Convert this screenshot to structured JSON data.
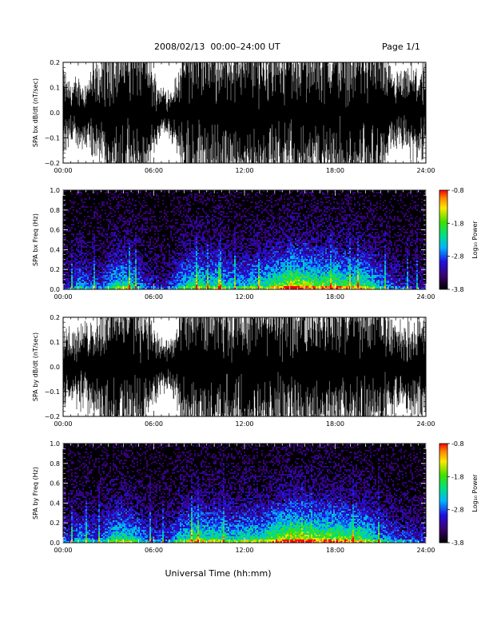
{
  "header": {
    "title": "2008/02/13  00:00–24:00 UT",
    "page": "Page 1/1"
  },
  "footer": {
    "xlabel": "Universal Time (hh:mm)"
  },
  "colorbar": {
    "label": "Log₁₀ Power",
    "ticks": [
      "-0.8",
      "-1.8",
      "-2.8",
      "-3.8"
    ]
  },
  "chart_data": [
    {
      "type": "line",
      "ylabel": "SPA bx dB/dt (nT/sec)",
      "xlim": [
        0,
        24
      ],
      "ylim": [
        -0.2,
        0.2
      ],
      "xticks": [
        "00:00",
        "06:00",
        "12:00",
        "18:00",
        "24:00"
      ],
      "yticks": [
        "0.2",
        "0.1",
        "0.0",
        "−0.1",
        "−0.2"
      ],
      "series": [
        {
          "x": [
            0,
            0.5,
            1,
            1.5,
            2,
            2.5,
            3,
            3.5,
            4,
            4.5,
            5,
            5.5,
            6,
            6.5,
            7,
            7.5,
            8,
            8.5,
            9,
            9.5,
            10,
            10.5,
            11,
            11.5,
            12,
            12.5,
            13,
            13.5,
            14,
            14.5,
            15,
            15.5,
            16,
            16.5,
            17,
            17.5,
            18,
            18.5,
            19,
            19.5,
            20,
            20.5,
            21,
            21.5,
            22,
            22.5,
            23,
            23.5,
            24
          ],
          "amplitude": [
            0.11,
            0.08,
            0.09,
            0.08,
            0.13,
            0.12,
            0.2,
            0.2,
            0.2,
            0.2,
            0.2,
            0.2,
            0.1,
            0.07,
            0.06,
            0.09,
            0.2,
            0.2,
            0.2,
            0.2,
            0.2,
            0.2,
            0.2,
            0.2,
            0.2,
            0.2,
            0.2,
            0.2,
            0.2,
            0.2,
            0.2,
            0.2,
            0.2,
            0.2,
            0.2,
            0.2,
            0.2,
            0.2,
            0.2,
            0.2,
            0.2,
            0.2,
            0.2,
            0.12,
            0.1,
            0.1,
            0.12,
            0.12,
            0.12
          ]
        }
      ]
    },
    {
      "type": "heatmap",
      "ylabel": "SPA bx Freq (Hz)",
      "xlim": [
        0,
        24
      ],
      "ylim": [
        0,
        1.0
      ],
      "xticks": [
        "00:00",
        "06:00",
        "12:00",
        "18:00",
        "24:00"
      ],
      "yticks": [
        "1.0",
        "0.8",
        "0.6",
        "0.4",
        "0.2",
        "0.0"
      ],
      "zlim": [
        -3.8,
        -0.8
      ],
      "activity": [
        0.25,
        0.2,
        0.45,
        0.35,
        0.3,
        0.3,
        0.45,
        0.55,
        0.6,
        0.55,
        0.4,
        0.3,
        0.25,
        0.25,
        0.25,
        0.4,
        0.5,
        0.6,
        0.65,
        0.55,
        0.6,
        0.55,
        0.5,
        0.45,
        0.5,
        0.55,
        0.55,
        0.6,
        0.7,
        0.75,
        0.85,
        0.85,
        0.8,
        0.75,
        0.7,
        0.75,
        0.75,
        0.7,
        0.65,
        0.7,
        0.65,
        0.55,
        0.45,
        0.35,
        0.3,
        0.25,
        0.25,
        0.2,
        0.2
      ]
    },
    {
      "type": "line",
      "ylabel": "SPA by dB/dt (nT/sec)",
      "xlim": [
        0,
        24
      ],
      "ylim": [
        -0.2,
        0.2
      ],
      "xticks": [
        "00:00",
        "06:00",
        "12:00",
        "18:00",
        "24:00"
      ],
      "yticks": [
        "0.2",
        "0.1",
        "0.0",
        "−0.1",
        "−0.2"
      ],
      "series": [
        {
          "x": [
            0,
            0.5,
            1,
            1.5,
            2,
            2.5,
            3,
            3.5,
            4,
            4.5,
            5,
            5.5,
            6,
            6.5,
            7,
            7.5,
            8,
            8.5,
            9,
            9.5,
            10,
            10.5,
            11,
            11.5,
            12,
            12.5,
            13,
            13.5,
            14,
            14.5,
            15,
            15.5,
            16,
            16.5,
            17,
            17.5,
            18,
            18.5,
            19,
            19.5,
            20,
            20.5,
            21,
            21.5,
            22,
            22.5,
            23,
            23.5,
            24
          ],
          "amplitude": [
            0.12,
            0.1,
            0.1,
            0.11,
            0.14,
            0.15,
            0.2,
            0.2,
            0.2,
            0.2,
            0.2,
            0.18,
            0.1,
            0.07,
            0.07,
            0.1,
            0.2,
            0.2,
            0.2,
            0.2,
            0.2,
            0.2,
            0.2,
            0.2,
            0.2,
            0.2,
            0.2,
            0.2,
            0.2,
            0.2,
            0.2,
            0.2,
            0.2,
            0.2,
            0.2,
            0.2,
            0.2,
            0.2,
            0.2,
            0.2,
            0.2,
            0.2,
            0.2,
            0.14,
            0.12,
            0.11,
            0.13,
            0.13,
            0.13
          ]
        }
      ]
    },
    {
      "type": "heatmap",
      "ylabel": "SPA by Freq (Hz)",
      "xlim": [
        0,
        24
      ],
      "ylim": [
        0,
        1.0
      ],
      "xticks": [
        "00:00",
        "06:00",
        "12:00",
        "18:00",
        "24:00"
      ],
      "yticks": [
        "1.0",
        "0.8",
        "0.6",
        "0.4",
        "0.2",
        "0.0"
      ],
      "zlim": [
        -3.8,
        -0.8
      ],
      "activity": [
        0.3,
        0.25,
        0.45,
        0.4,
        0.35,
        0.35,
        0.5,
        0.6,
        0.6,
        0.55,
        0.45,
        0.35,
        0.3,
        0.3,
        0.3,
        0.45,
        0.55,
        0.65,
        0.7,
        0.6,
        0.65,
        0.6,
        0.55,
        0.55,
        0.6,
        0.6,
        0.6,
        0.65,
        0.75,
        0.8,
        0.85,
        0.85,
        0.85,
        0.8,
        0.75,
        0.8,
        0.75,
        0.75,
        0.7,
        0.7,
        0.65,
        0.55,
        0.45,
        0.4,
        0.35,
        0.3,
        0.3,
        0.25,
        0.25
      ]
    }
  ]
}
